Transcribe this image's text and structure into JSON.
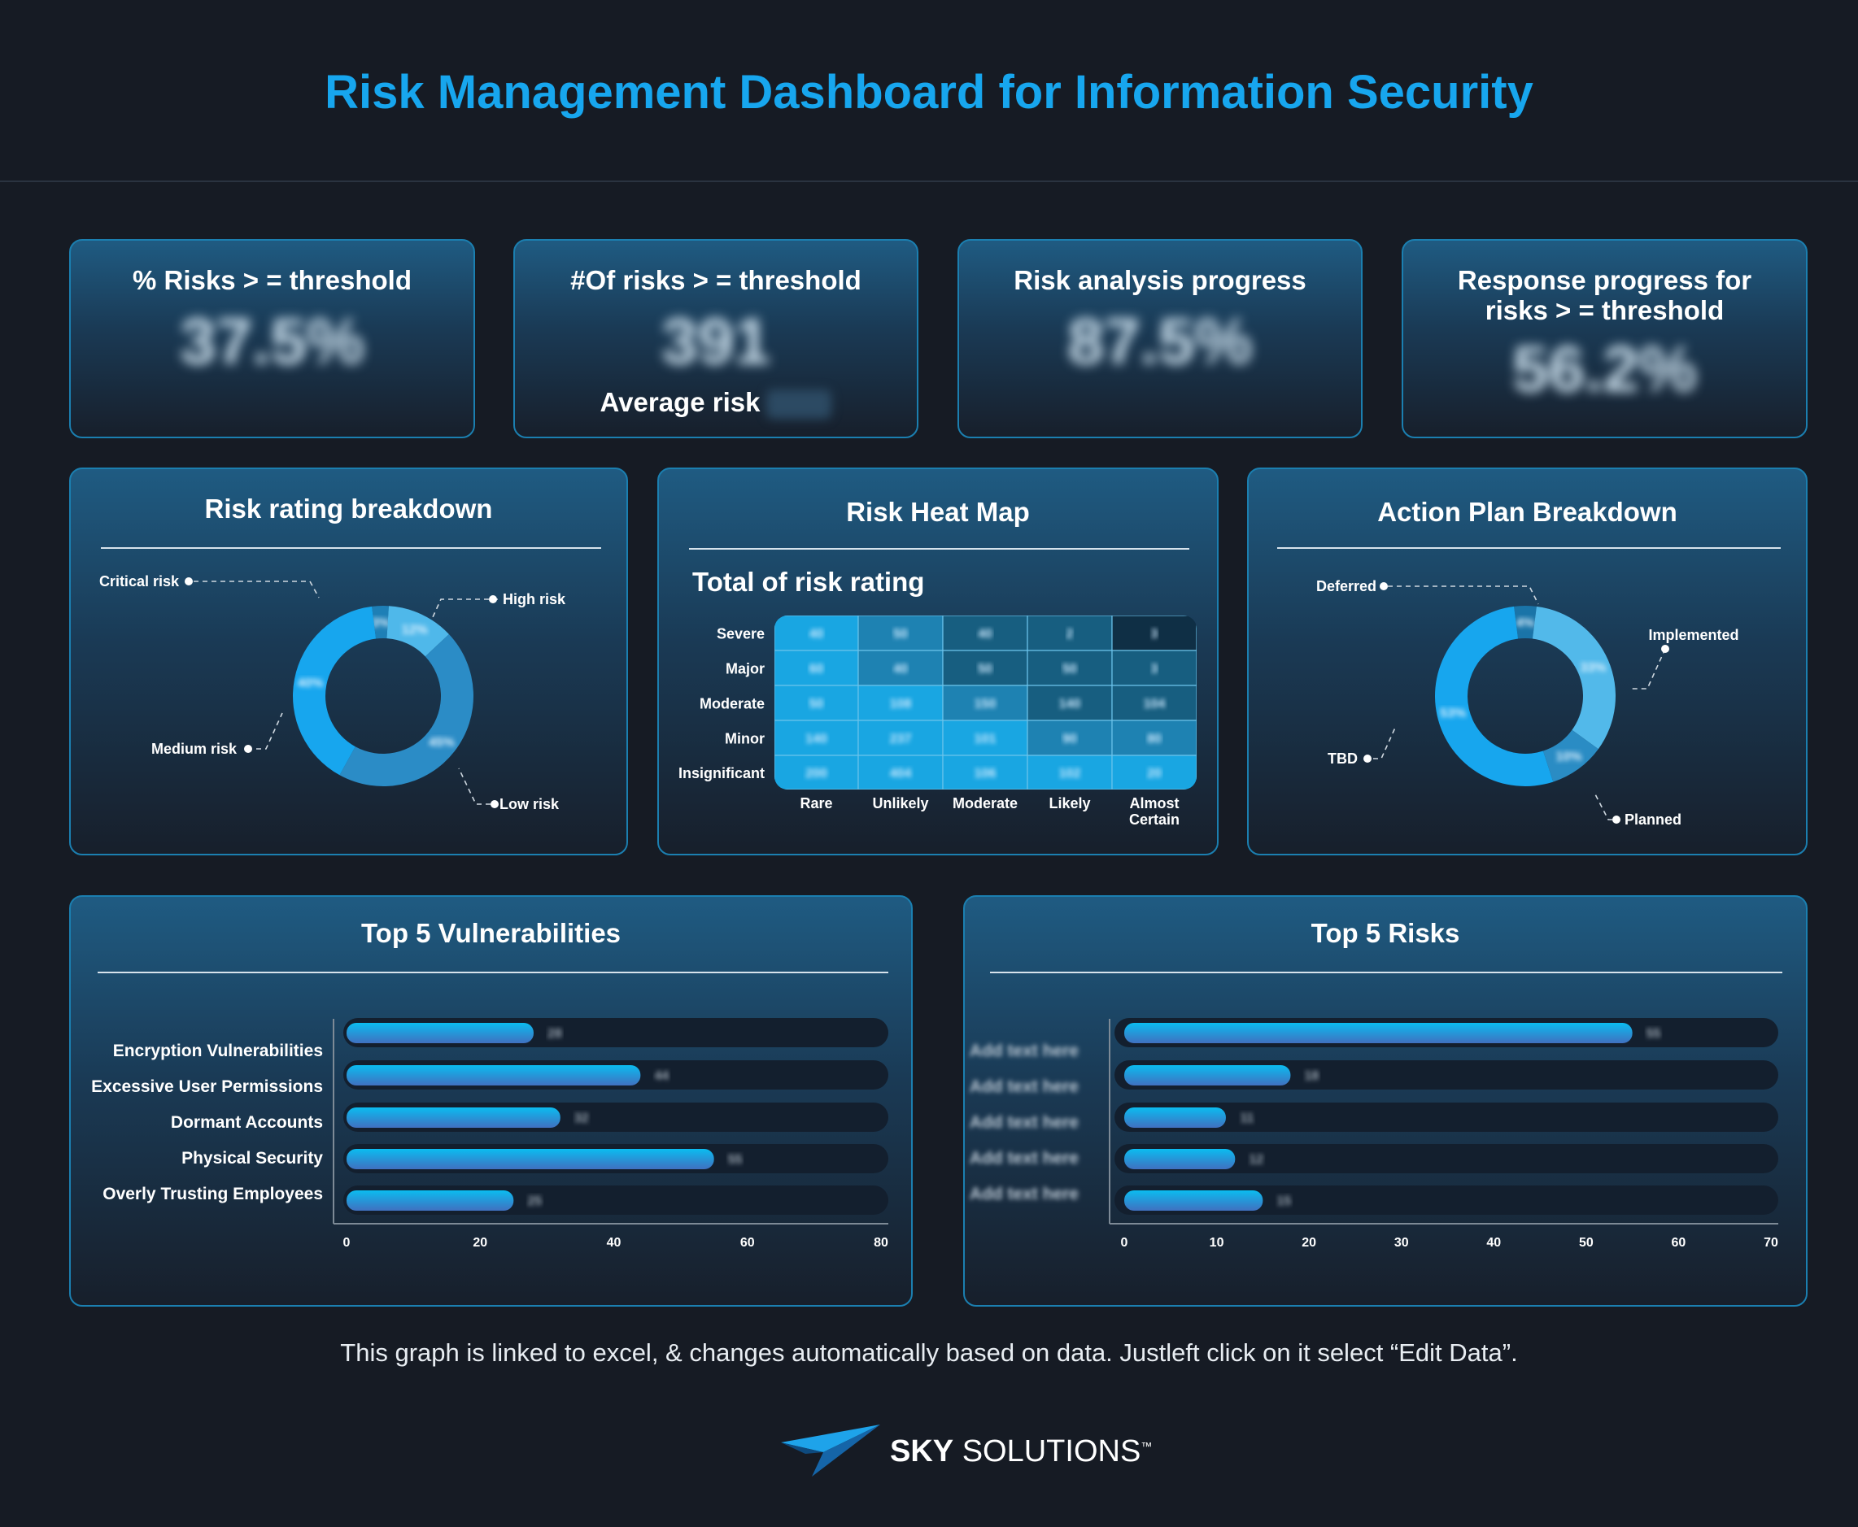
{
  "header": {
    "title": "Risk Management Dashboard for Information Security"
  },
  "kpis": [
    {
      "title": "% Risks > = threshold",
      "value": "37.5%"
    },
    {
      "title": "#Of risks > = threshold",
      "value": "391",
      "sub_label": "Average risk"
    },
    {
      "title": "Risk analysis progress",
      "value": "87.5%"
    },
    {
      "title": "Response progress for risks > = threshold",
      "title_lines": [
        "Response progress for",
        "risks > = threshold"
      ],
      "value": "56.2%"
    }
  ],
  "colors": {
    "accent": "#17a6ee",
    "card_border": "#1b7fb0",
    "background": "#161b24"
  },
  "chart_data": [
    {
      "type": "pie",
      "title": "Risk rating breakdown",
      "donut": true,
      "labels": [
        "Critical risk",
        "High risk",
        "Low risk",
        "Medium risk"
      ],
      "values": [
        3,
        12,
        45,
        40
      ],
      "colors": [
        "#1e7fb6",
        "#4fb8ea",
        "#2b8cc6",
        "#17a6ee"
      ]
    },
    {
      "type": "heatmap",
      "title": "Risk Heat Map",
      "subtitle": "Total of risk rating",
      "rows": [
        "Severe",
        "Major",
        "Moderate",
        "Minor",
        "Insignificant"
      ],
      "columns": [
        "Rare",
        "Unlikely",
        "Moderate",
        "Likely",
        "Almost Certain"
      ],
      "values": [
        [
          40,
          50,
          40,
          2,
          3
        ],
        [
          60,
          40,
          50,
          50,
          3
        ],
        [
          50,
          108,
          150,
          140,
          104
        ],
        [
          140,
          237,
          101,
          90,
          80
        ],
        [
          200,
          404,
          106,
          102,
          20
        ]
      ],
      "levels": [
        [
          0,
          1,
          2,
          2,
          3
        ],
        [
          0,
          1,
          2,
          2,
          2
        ],
        [
          0,
          0,
          1,
          2,
          2
        ],
        [
          0,
          0,
          0,
          1,
          1
        ],
        [
          0,
          0,
          0,
          0,
          0
        ]
      ],
      "palette": [
        "#19a6e2",
        "#1e82b2",
        "#175e80",
        "#0f2f45"
      ]
    },
    {
      "type": "pie",
      "title": "Action Plan Breakdown",
      "donut": true,
      "labels": [
        "Deferred",
        "Implemented",
        "Planned",
        "TBD"
      ],
      "values": [
        4,
        33,
        10,
        53
      ],
      "colors": [
        "#1a74a8",
        "#52b9ea",
        "#2a8cc4",
        "#17a6ee"
      ]
    },
    {
      "type": "bar",
      "orientation": "horizontal",
      "title": "Top 5 Vulnerabilities",
      "categories": [
        "Encryption Vulnerabilities",
        "Excessive User Permissions",
        "Dormant Accounts",
        "Physical Security",
        "Overly Trusting Employees"
      ],
      "values": [
        28,
        44,
        32,
        55,
        25
      ],
      "xlim": [
        0,
        80
      ],
      "xticks": [
        0,
        20,
        40,
        60,
        80
      ]
    },
    {
      "type": "bar",
      "orientation": "horizontal",
      "title": "Top 5 Risks",
      "categories": [
        "Add text here",
        "Add text here",
        "Add text here",
        "Add text here",
        "Add text here"
      ],
      "values": [
        55,
        18,
        11,
        12,
        15
      ],
      "xlim": [
        0,
        70
      ],
      "xticks": [
        0,
        10,
        20,
        30,
        40,
        50,
        60,
        70
      ]
    }
  ],
  "footer": {
    "note": "This graph is linked to excel, & changes automatically based on data. Justleft click on it select “Edit Data”."
  },
  "logo": {
    "brand_bold": "SKY",
    "brand_rest": " SOLUTIONS",
    "trademark": "™",
    "icon": "paper-plane-icon"
  }
}
